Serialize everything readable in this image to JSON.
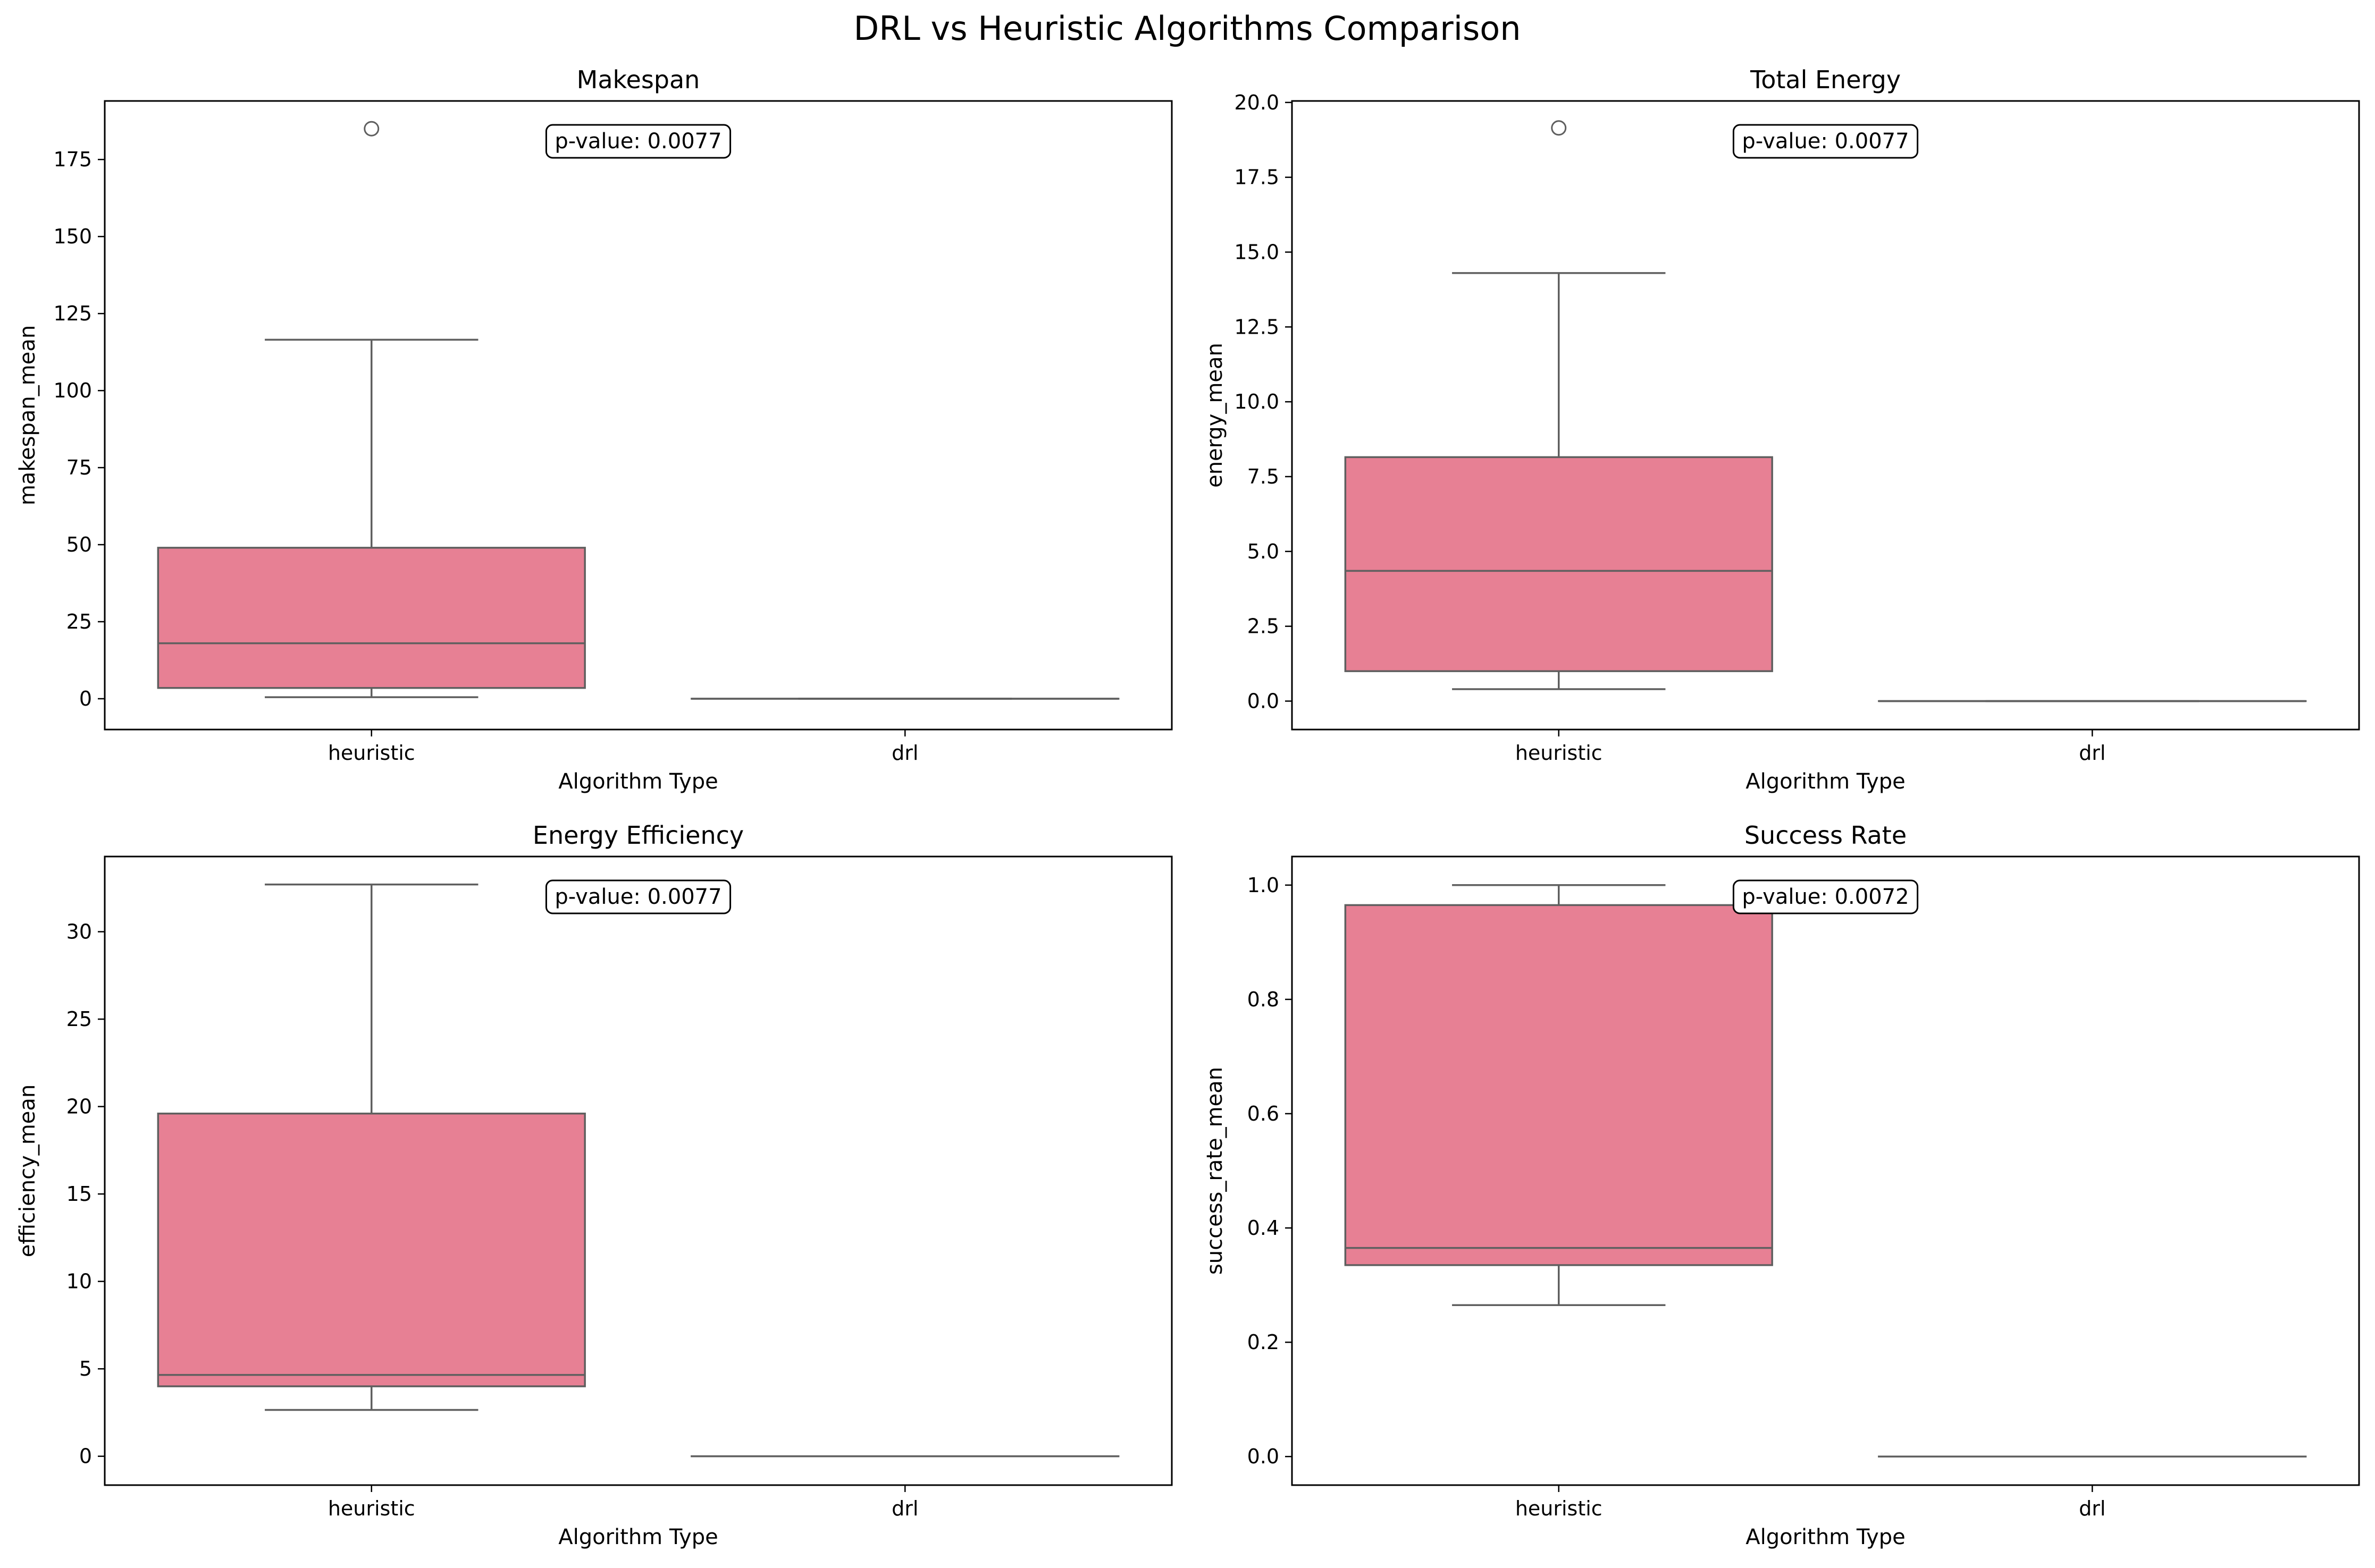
{
  "suptitle": "DRL vs Heuristic Algorithms Comparison",
  "colors": {
    "box_fill": "#e78094",
    "line": "#5f5f5f",
    "frame": "#000000",
    "annotation_edge": "#000000",
    "annotation_fill": "#ffffff"
  },
  "chart_data": [
    {
      "type": "box",
      "title": "Makespan",
      "xlabel": "Algorithm Type",
      "ylabel": "makespan_mean",
      "categories": [
        "heuristic",
        "drl"
      ],
      "ylim": [
        -10,
        194
      ],
      "yticks": [
        0,
        25,
        50,
        75,
        100,
        125,
        150,
        175
      ],
      "ytick_labels": [
        "0",
        "25",
        "50",
        "75",
        "100",
        "125",
        "150",
        "175"
      ],
      "boxes": [
        {
          "name": "heuristic",
          "whisker_low": 0.5,
          "q1": 3.5,
          "median": 18,
          "q3": 49,
          "whisker_high": 116.5,
          "outliers": [
            185
          ]
        },
        {
          "name": "drl",
          "whisker_low": 0,
          "q1": 0,
          "median": 0,
          "q3": 0,
          "whisker_high": 0,
          "outliers": []
        }
      ],
      "annotation": "p-value: 0.0077",
      "grid": false
    },
    {
      "type": "box",
      "title": "Total Energy",
      "xlabel": "Algorithm Type",
      "ylabel": "energy_mean",
      "categories": [
        "heuristic",
        "drl"
      ],
      "ylim": [
        -0.95,
        20.05
      ],
      "yticks": [
        0,
        2.5,
        5,
        7.5,
        10,
        12.5,
        15,
        17.5,
        20
      ],
      "ytick_labels": [
        "0.0",
        "2.5",
        "5.0",
        "7.5",
        "10.0",
        "12.5",
        "15.0",
        "17.5",
        "20.0"
      ],
      "boxes": [
        {
          "name": "heuristic",
          "whisker_low": 0.4,
          "q1": 1.0,
          "median": 4.35,
          "q3": 8.15,
          "whisker_high": 14.3,
          "outliers": [
            19.15
          ]
        },
        {
          "name": "drl",
          "whisker_low": 0,
          "q1": 0,
          "median": 0,
          "q3": 0,
          "whisker_high": 0,
          "outliers": []
        }
      ],
      "annotation": "p-value: 0.0077",
      "grid": false
    },
    {
      "type": "box",
      "title": "Energy Efficiency",
      "xlabel": "Algorithm Type",
      "ylabel": "efficiency_mean",
      "categories": [
        "heuristic",
        "drl"
      ],
      "ylim": [
        -1.65,
        34.3
      ],
      "yticks": [
        0,
        5,
        10,
        15,
        20,
        25,
        30
      ],
      "ytick_labels": [
        "0",
        "5",
        "10",
        "15",
        "20",
        "25",
        "30"
      ],
      "boxes": [
        {
          "name": "heuristic",
          "whisker_low": 2.65,
          "q1": 4.0,
          "median": 4.65,
          "q3": 19.6,
          "whisker_high": 32.7,
          "outliers": []
        },
        {
          "name": "drl",
          "whisker_low": 0,
          "q1": 0,
          "median": 0,
          "q3": 0,
          "whisker_high": 0,
          "outliers": []
        }
      ],
      "annotation": "p-value: 0.0077",
      "grid": false
    },
    {
      "type": "box",
      "title": "Success Rate",
      "xlabel": "Algorithm Type",
      "ylabel": "success_rate_mean",
      "categories": [
        "heuristic",
        "drl"
      ],
      "ylim": [
        -0.05,
        1.05
      ],
      "yticks": [
        0,
        0.2,
        0.4,
        0.6,
        0.8,
        1.0
      ],
      "ytick_labels": [
        "0.0",
        "0.2",
        "0.4",
        "0.6",
        "0.8",
        "1.0"
      ],
      "boxes": [
        {
          "name": "heuristic",
          "whisker_low": 0.265,
          "q1": 0.335,
          "median": 0.365,
          "q3": 0.965,
          "whisker_high": 1.0,
          "outliers": []
        },
        {
          "name": "drl",
          "whisker_low": 0,
          "q1": 0,
          "median": 0,
          "q3": 0,
          "whisker_high": 0,
          "outliers": []
        }
      ],
      "annotation": "p-value: 0.0072",
      "grid": false
    }
  ]
}
